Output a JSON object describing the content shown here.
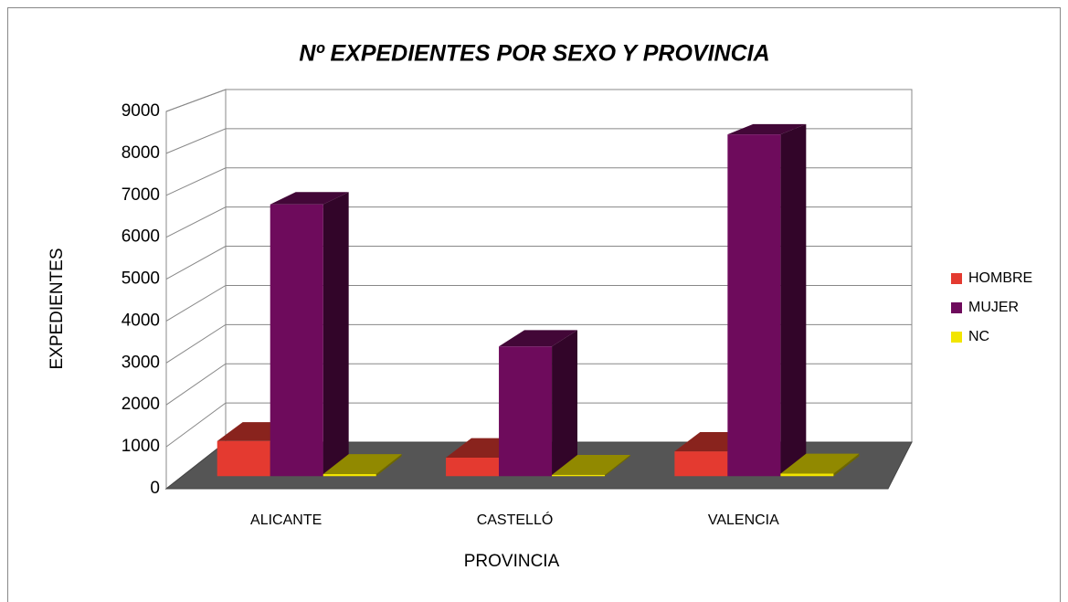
{
  "chart_data": {
    "type": "bar",
    "title": "Nº EXPEDIENTES POR SEXO Y PROVINCIA",
    "x_label": "PROVINCIA",
    "y_label": "EXPEDIENTES",
    "categories": [
      "ALICANTE",
      "CASTELLÓ",
      "VALENCIA"
    ],
    "series": [
      {
        "name": "HOMBRE",
        "color": "#e43a30",
        "values": [
          850,
          450,
          600
        ]
      },
      {
        "name": "MUJER",
        "color": "#6e0b5c",
        "values": [
          6600,
          3150,
          8300
        ]
      },
      {
        "name": "NC",
        "color": "#f2e500",
        "values": [
          50,
          30,
          60
        ]
      }
    ],
    "ylim": [
      0,
      9000
    ],
    "yticks": [
      0,
      1000,
      2000,
      3000,
      4000,
      5000,
      6000,
      7000,
      8000,
      9000
    ],
    "grid": true,
    "legend": "right"
  }
}
